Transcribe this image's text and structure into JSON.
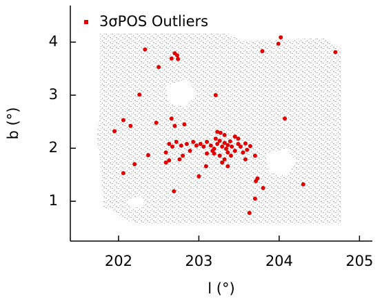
{
  "chart_data": {
    "type": "scatter",
    "xlabel": "l (°)",
    "ylabel": "b (°)",
    "xlim": [
      201.4,
      205.16
    ],
    "ylim": [
      0.25,
      4.69
    ],
    "xticks": [
      202,
      203,
      204,
      205
    ],
    "yticks": [
      1,
      2,
      3,
      4
    ],
    "legend": "upper left",
    "series": [
      {
        "name": "3σPOS Outliers",
        "color": "#e00000",
        "x": [
          202.33,
          202.73,
          202.7,
          202.66,
          202.74,
          202.5,
          203.79,
          204.02,
          203.99,
          204.7,
          202.26,
          203.21,
          201.95,
          202.06,
          202.15,
          202.47,
          202.66,
          202.7,
          202.82,
          204.07,
          202.06,
          202.2,
          202.37,
          202.69,
          203.0,
          203.09,
          203.71,
          203.73,
          203.8,
          203.7,
          204.3,
          203.63,
          203.02,
          203.06,
          203.1,
          203.15,
          203.19,
          203.23,
          203.26,
          203.29,
          203.32,
          203.34,
          203.36,
          203.39,
          203.41,
          203.45,
          203.49,
          203.52,
          203.55,
          203.58,
          203.6,
          203.64,
          203.19,
          203.26,
          203.32,
          203.36,
          203.4,
          203.27,
          203.23,
          203.32,
          203.45,
          203.49,
          202.97,
          202.93,
          202.85,
          202.78,
          202.72,
          202.67,
          202.63,
          202.59,
          202.76,
          202.8,
          202.63,
          202.59,
          202.89,
          203.1,
          203.58,
          203.7,
          203.36,
          203.29,
          203.17,
          203.21
        ],
        "y": [
          3.86,
          3.75,
          3.79,
          3.69,
          3.68,
          3.53,
          3.83,
          4.09,
          3.97,
          3.81,
          3.01,
          3.0,
          2.32,
          2.53,
          2.42,
          2.48,
          2.56,
          2.42,
          2.45,
          2.56,
          1.53,
          1.7,
          1.87,
          1.19,
          1.47,
          1.66,
          1.38,
          1.43,
          1.25,
          1.05,
          1.32,
          0.78,
          2.08,
          2.03,
          2.12,
          2.05,
          1.99,
          2.08,
          2.14,
          2.03,
          2.1,
          1.99,
          2.06,
          2.13,
          2.03,
          1.95,
          2.08,
          2.03,
          1.92,
          2.09,
          1.97,
          2.04,
          1.9,
          1.86,
          1.79,
          1.92,
          1.86,
          2.29,
          2.31,
          2.25,
          2.22,
          2.18,
          2.05,
          2.12,
          2.08,
          2.05,
          2.12,
          2.03,
          2.08,
          1.92,
          1.79,
          1.86,
          1.77,
          1.73,
          1.95,
          1.9,
          1.79,
          1.86,
          1.66,
          1.73,
          1.95,
          2.18
        ]
      }
    ]
  }
}
